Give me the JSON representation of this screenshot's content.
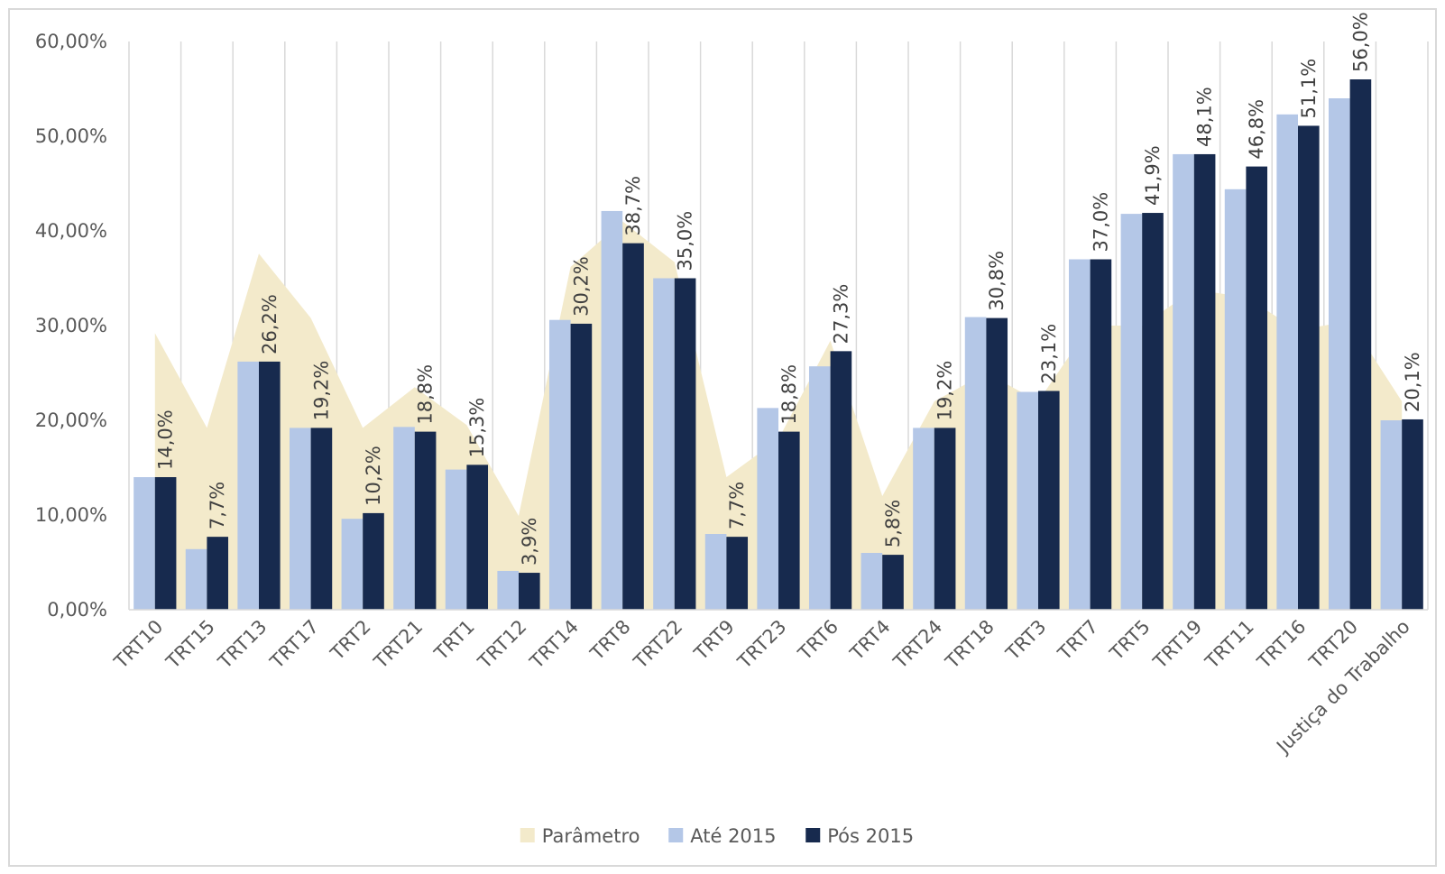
{
  "chart_data": {
    "type": "bar",
    "categories": [
      "TRT10",
      "TRT15",
      "TRT13",
      "TRT17",
      "TRT2",
      "TRT21",
      "TRT1",
      "TRT12",
      "TRT14",
      "TRT8",
      "TRT22",
      "TRT9",
      "TRT23",
      "TRT6",
      "TRT4",
      "TRT24",
      "TRT18",
      "TRT3",
      "TRT7",
      "TRT5",
      "TRT19",
      "TRT11",
      "TRT16",
      "TRT20",
      "Justiça do Trabalho"
    ],
    "series": [
      {
        "name": "Parâmetro",
        "kind": "area",
        "color": "#f3eacb",
        "values": [
          29.2,
          19.2,
          37.6,
          30.8,
          19.2,
          23.5,
          19.5,
          9.9,
          36.2,
          41.0,
          36.7,
          14.0,
          18.0,
          28.4,
          12.0,
          22.0,
          25.0,
          22.0,
          30.0,
          30.0,
          33.8,
          33.0,
          29.5,
          30.5,
          22.0
        ]
      },
      {
        "name": "Até 2015",
        "kind": "bar",
        "color": "#b4c7e7",
        "values": [
          14.0,
          6.4,
          26.2,
          19.2,
          9.6,
          19.3,
          14.8,
          4.1,
          30.6,
          42.1,
          35.0,
          8.0,
          21.3,
          25.7,
          6.0,
          19.2,
          30.9,
          23.0,
          37.0,
          41.8,
          48.1,
          44.4,
          52.3,
          54.0,
          20.0
        ]
      },
      {
        "name": "Pós 2015",
        "kind": "bar",
        "color": "#172a4e",
        "values": [
          14.0,
          7.7,
          26.2,
          19.2,
          10.2,
          18.8,
          15.3,
          3.9,
          30.2,
          38.7,
          35.0,
          7.7,
          18.8,
          27.3,
          5.8,
          19.2,
          30.8,
          23.1,
          37.0,
          41.9,
          48.1,
          46.8,
          51.1,
          56.0,
          20.1
        ],
        "value_labels": [
          "14,0%",
          "7,7%",
          "26,2%",
          "19,2%",
          "10,2%",
          "18,8%",
          "15,3%",
          "3,9%",
          "30,2%",
          "38,7%",
          "35,0%",
          "7,7%",
          "18,8%",
          "27,3%",
          "5,8%",
          "19,2%",
          "30,8%",
          "23,1%",
          "37,0%",
          "41,9%",
          "48,1%",
          "46,8%",
          "51,1%",
          "56,0%",
          "20,1%"
        ]
      }
    ],
    "ylim": [
      0,
      60
    ],
    "yticks": [
      {
        "value": 0,
        "label": "0,00%"
      },
      {
        "value": 10,
        "label": "10,00%"
      },
      {
        "value": 20,
        "label": "20,00%"
      },
      {
        "value": 30,
        "label": "30,00%"
      },
      {
        "value": 40,
        "label": "40,00%"
      },
      {
        "value": 50,
        "label": "50,00%"
      },
      {
        "value": 60,
        "label": "60,00%"
      }
    ],
    "x_grid": true,
    "legend": "bottom"
  }
}
